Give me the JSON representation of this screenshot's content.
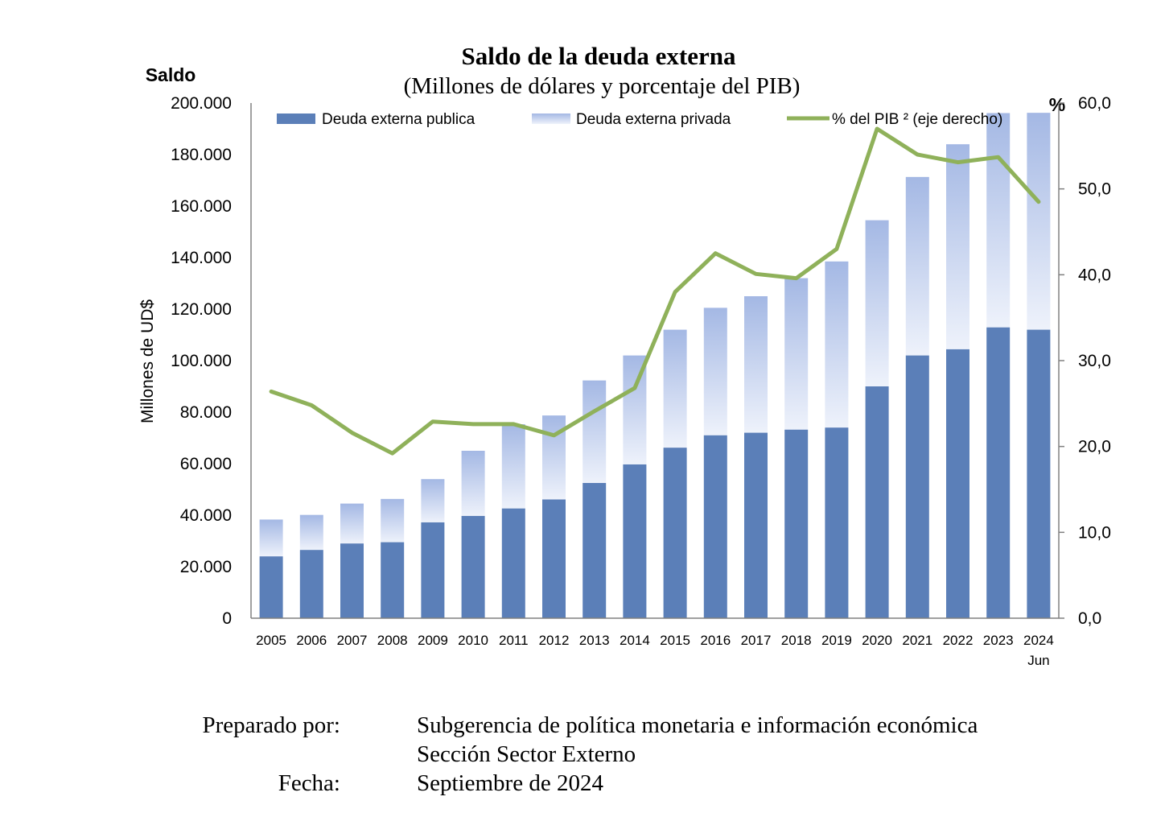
{
  "chart_data": {
    "type": "bar",
    "stacked": true,
    "title": "Saldo de la deuda externa",
    "subtitle": "(Millones  de dólares y porcentaje del PIB)",
    "left_axis_header": "Saldo",
    "right_axis_header": "%",
    "ylabel": "Millones de UD$",
    "ylim": [
      0,
      200000
    ],
    "y2lim": [
      0,
      60
    ],
    "yticks": [
      "0",
      "20.000",
      "40.000",
      "60.000",
      "80.000",
      "100.000",
      "120.000",
      "140.000",
      "160.000",
      "180.000",
      "200.000"
    ],
    "y2ticks": [
      "0,0",
      "10,0",
      "20,0",
      "30,0",
      "40,0",
      "50,0",
      "60,0"
    ],
    "categories": [
      "2005",
      "2006",
      "2007",
      "2008",
      "2009",
      "2010",
      "2011",
      "2012",
      "2013",
      "2014",
      "2015",
      "2016",
      "2017",
      "2018",
      "2019",
      "2020",
      "2021",
      "2022",
      "2023",
      "2024"
    ],
    "category_sublabels": {
      "2024": "Jun"
    },
    "series": [
      {
        "name": "Deuda externa publica",
        "type": "bar",
        "color": "#5b7fb8",
        "values": [
          24000,
          26500,
          29000,
          29500,
          37200,
          39700,
          42600,
          46100,
          52500,
          59700,
          66200,
          71000,
          72000,
          73200,
          74000,
          90000,
          102000,
          104400,
          112900,
          112000
        ]
      },
      {
        "name": "Deuda externa privada",
        "type": "bar",
        "color": "#a9bde6",
        "values": [
          14300,
          13600,
          15500,
          16800,
          16800,
          25300,
          32700,
          32600,
          39800,
          42300,
          45800,
          49500,
          53000,
          58800,
          64500,
          64500,
          69300,
          79600,
          83200,
          84200
        ]
      },
      {
        "name": "% del PIB ² (eje derecho)",
        "type": "line",
        "axis": "right",
        "color": "#8fb15a",
        "values": [
          26.4,
          24.8,
          21.6,
          19.2,
          22.9,
          22.6,
          22.6,
          21.3,
          24.1,
          26.8,
          38.0,
          42.5,
          40.1,
          39.6,
          43.0,
          57.0,
          54.0,
          53.1,
          53.7,
          48.5
        ]
      }
    ],
    "legend_position": "top",
    "grid": false
  },
  "footer": {
    "prepared_label": "Preparado por:",
    "prepared_value_1": "Subgerencia de política monetaria e información económica",
    "prepared_value_2": "Sección Sector Externo",
    "date_label": "Fecha:",
    "date_value": "Septiembre de 2024"
  }
}
